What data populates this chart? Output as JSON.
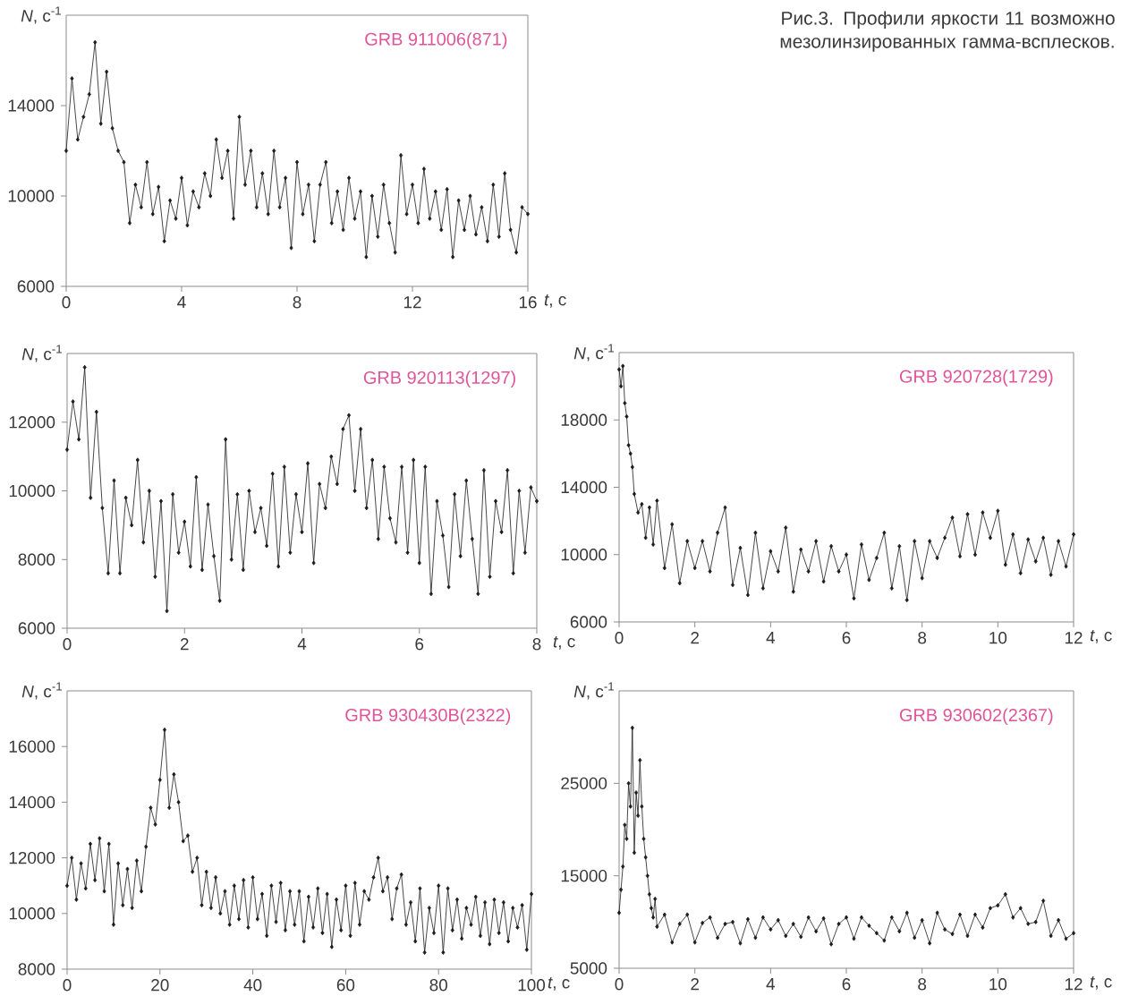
{
  "chart_data": [
    {
      "type": "other",
      "title": "Рис.3. Профили яркости 11 возможно мезолинзированных гамма-всплесков."
    },
    {
      "type": "line",
      "annotations": [
        "GRB 911006(871)"
      ],
      "xlabel": "*t*, с",
      "ylabel": "*N*, с$^{-1}$",
      "color": "#1a1a1a",
      "marker": "diamond",
      "line_style": "solid",
      "xlim": [
        0,
        16
      ],
      "ylim": [
        6000,
        18000
      ],
      "xticks": [
        0,
        4,
        8,
        12,
        16
      ],
      "yticks": [
        6000,
        10000,
        14000
      ],
      "x": [
        0,
        0.2,
        0.4,
        0.6,
        0.8,
        1,
        1.2,
        1.4,
        1.6,
        1.8,
        2,
        2.2,
        2.4,
        2.6,
        2.8,
        3,
        3.2,
        3.4,
        3.6,
        3.8,
        4,
        4.2,
        4.4,
        4.6,
        4.8,
        5,
        5.2,
        5.4,
        5.6,
        5.8,
        6,
        6.2,
        6.4,
        6.6,
        6.8,
        7,
        7.2,
        7.4,
        7.6,
        7.8,
        8,
        8.2,
        8.4,
        8.6,
        8.8,
        9,
        9.2,
        9.4,
        9.6,
        9.8,
        10,
        10.2,
        10.4,
        10.6,
        10.8,
        11,
        11.2,
        11.4,
        11.6,
        11.8,
        12,
        12.2,
        12.4,
        12.6,
        12.8,
        13,
        13.2,
        13.4,
        13.6,
        13.8,
        14,
        14.2,
        14.4,
        14.6,
        14.8,
        15,
        15.2,
        15.4,
        15.6,
        15.8,
        16
      ],
      "values": [
        12000,
        15200,
        12500,
        13500,
        14500,
        16800,
        13200,
        15500,
        13000,
        12000,
        11500,
        8800,
        10500,
        9500,
        11500,
        9200,
        10400,
        8000,
        9800,
        9000,
        10800,
        8700,
        10200,
        9500,
        11000,
        10000,
        12500,
        10800,
        12000,
        9000,
        13500,
        10500,
        12000,
        9500,
        11000,
        9200,
        12000,
        9500,
        10800,
        7700,
        11500,
        9200,
        10500,
        8000,
        10500,
        11500,
        8800,
        10200,
        8500,
        10800,
        9000,
        10200,
        7300,
        10000,
        8200,
        10500,
        8800,
        7500,
        11800,
        9200,
        10500,
        8800,
        11200,
        9000,
        10200,
        8500,
        10300,
        7300,
        9800,
        8500,
        10000,
        8300,
        9500,
        8000,
        10500,
        8200,
        11000,
        8500,
        7500,
        9500,
        9200
      ]
    },
    {
      "type": "line",
      "annotations": [
        "GRB 920113(1297)"
      ],
      "xlabel": "*t*, с",
      "ylabel": "*N*, с$^{-1}$",
      "color": "#1a1a1a",
      "marker": "diamond",
      "line_style": "solid",
      "xlim": [
        0,
        8
      ],
      "ylim": [
        6000,
        14000
      ],
      "xticks": [
        0,
        2,
        4,
        6,
        8
      ],
      "yticks": [
        6000,
        8000,
        10000,
        12000
      ],
      "x": [
        0,
        0.1,
        0.2,
        0.3,
        0.4,
        0.5,
        0.6,
        0.7,
        0.8,
        0.9,
        1,
        1.1,
        1.2,
        1.3,
        1.4,
        1.5,
        1.6,
        1.7,
        1.8,
        1.9,
        2,
        2.1,
        2.2,
        2.3,
        2.4,
        2.5,
        2.6,
        2.7,
        2.8,
        2.9,
        3,
        3.1,
        3.2,
        3.3,
        3.4,
        3.5,
        3.6,
        3.7,
        3.8,
        3.9,
        4,
        4.1,
        4.2,
        4.3,
        4.4,
        4.5,
        4.6,
        4.7,
        4.8,
        4.9,
        5,
        5.1,
        5.2,
        5.3,
        5.4,
        5.5,
        5.6,
        5.7,
        5.8,
        5.9,
        6,
        6.1,
        6.2,
        6.3,
        6.4,
        6.5,
        6.6,
        6.7,
        6.8,
        6.9,
        7,
        7.1,
        7.2,
        7.3,
        7.4,
        7.5,
        7.6,
        7.7,
        7.8,
        7.9,
        8
      ],
      "values": [
        11200,
        12600,
        11500,
        13600,
        9800,
        12300,
        9500,
        7600,
        10300,
        7600,
        9800,
        9000,
        10900,
        8500,
        10000,
        7500,
        9700,
        6500,
        9900,
        8200,
        9100,
        7800,
        10400,
        7700,
        9600,
        8100,
        6800,
        11500,
        8000,
        9900,
        7700,
        10000,
        8800,
        9500,
        8400,
        10500,
        7800,
        10700,
        8200,
        9900,
        8800,
        10800,
        7900,
        10200,
        9500,
        11000,
        10200,
        11800,
        12200,
        10000,
        11800,
        9500,
        10900,
        8600,
        10700,
        9200,
        8500,
        10700,
        8200,
        10900,
        7900,
        10700,
        7000,
        9700,
        8700,
        7200,
        9900,
        8100,
        10300,
        8600,
        7000,
        10600,
        7500,
        9700,
        8800,
        10600,
        7600,
        10000,
        8200,
        10100,
        9700
      ]
    },
    {
      "type": "line",
      "annotations": [
        "GRB 920728(1729)"
      ],
      "xlabel": "*t*, с",
      "ylabel": "*N*, с$^{-1}$",
      "color": "#1a1a1a",
      "marker": "diamond",
      "line_style": "solid",
      "xlim": [
        0,
        12
      ],
      "ylim": [
        6000,
        22000
      ],
      "xticks": [
        0,
        2,
        4,
        6,
        8,
        10,
        12
      ],
      "yticks": [
        6000,
        10000,
        14000,
        18000
      ],
      "x": [
        0,
        0.05,
        0.1,
        0.15,
        0.2,
        0.25,
        0.3,
        0.35,
        0.4,
        0.5,
        0.6,
        0.7,
        0.8,
        0.9,
        1,
        1.2,
        1.4,
        1.6,
        1.8,
        2,
        2.2,
        2.4,
        2.6,
        2.8,
        3,
        3.2,
        3.4,
        3.6,
        3.8,
        4,
        4.2,
        4.4,
        4.6,
        4.8,
        5,
        5.2,
        5.4,
        5.6,
        5.8,
        6,
        6.2,
        6.4,
        6.6,
        6.8,
        7,
        7.2,
        7.4,
        7.6,
        7.8,
        8,
        8.2,
        8.4,
        8.6,
        8.8,
        9,
        9.2,
        9.4,
        9.6,
        9.8,
        10,
        10.2,
        10.4,
        10.6,
        10.8,
        11,
        11.2,
        11.4,
        11.6,
        11.8,
        12
      ],
      "values": [
        21000,
        20000,
        21200,
        19000,
        18200,
        16500,
        16000,
        15200,
        13600,
        12500,
        13000,
        11000,
        12800,
        10600,
        13200,
        9200,
        11800,
        8300,
        10800,
        9200,
        10800,
        9000,
        11300,
        12800,
        8200,
        10400,
        7600,
        11300,
        8000,
        10200,
        9000,
        11600,
        7800,
        10300,
        9000,
        10800,
        8400,
        10500,
        9000,
        10000,
        7400,
        10600,
        8500,
        9800,
        11300,
        8000,
        10500,
        7300,
        10800,
        8600,
        10800,
        9800,
        11000,
        12200,
        9900,
        12400,
        10000,
        12500,
        11000,
        12600,
        9400,
        11200,
        8900,
        10900,
        9600,
        11000,
        8800,
        10800,
        9300,
        11200
      ]
    },
    {
      "type": "line",
      "annotations": [
        "GRB 930430B(2322)"
      ],
      "xlabel": "*t*, с",
      "ylabel": "*N*, с$^{-1}$",
      "color": "#1a1a1a",
      "marker": "diamond",
      "line_style": "solid",
      "xlim": [
        0,
        100
      ],
      "ylim": [
        8000,
        18000
      ],
      "xticks": [
        0,
        20,
        40,
        60,
        80,
        100
      ],
      "yticks": [
        8000,
        10000,
        12000,
        14000,
        16000
      ],
      "x": [
        0,
        1,
        2,
        3,
        4,
        5,
        6,
        7,
        8,
        9,
        10,
        11,
        12,
        13,
        14,
        15,
        16,
        17,
        18,
        19,
        20,
        21,
        22,
        23,
        24,
        25,
        26,
        27,
        28,
        29,
        30,
        31,
        32,
        33,
        34,
        35,
        36,
        37,
        38,
        39,
        40,
        41,
        42,
        43,
        44,
        45,
        46,
        47,
        48,
        49,
        50,
        51,
        52,
        53,
        54,
        55,
        56,
        57,
        58,
        59,
        60,
        61,
        62,
        63,
        64,
        65,
        66,
        67,
        68,
        69,
        70,
        71,
        72,
        73,
        74,
        75,
        76,
        77,
        78,
        79,
        80,
        81,
        82,
        83,
        84,
        85,
        86,
        87,
        88,
        89,
        90,
        91,
        92,
        93,
        94,
        95,
        96,
        97,
        98,
        99,
        100
      ],
      "values": [
        11000,
        12000,
        10500,
        11800,
        10900,
        12500,
        11200,
        12700,
        10800,
        12500,
        9600,
        11800,
        10300,
        11600,
        10200,
        11900,
        10800,
        12400,
        13800,
        13200,
        14800,
        16600,
        13800,
        15000,
        14000,
        12600,
        12800,
        11500,
        12000,
        10300,
        11500,
        10200,
        11300,
        10000,
        10800,
        9600,
        11000,
        9800,
        11200,
        9500,
        11300,
        9800,
        10700,
        9200,
        11000,
        9700,
        11100,
        9400,
        10800,
        9600,
        10800,
        9000,
        10600,
        9500,
        10900,
        9300,
        10700,
        8800,
        10500,
        9400,
        11000,
        9200,
        11100,
        9600,
        10800,
        10500,
        11300,
        12000,
        10800,
        11300,
        9800,
        10900,
        11400,
        9600,
        10400,
        9000,
        10900,
        8600,
        10200,
        9300,
        11000,
        8600,
        10900,
        9400,
        10500,
        9100,
        10200,
        9600,
        10600,
        9200,
        10400,
        8900,
        10500,
        9300,
        10400,
        9000,
        10200,
        9500,
        10300,
        8700,
        10700
      ]
    },
    {
      "type": "line",
      "annotations": [
        "GRB 930602(2367)"
      ],
      "xlabel": "*t*, с",
      "ylabel": "*N*, с$^{-1}$",
      "color": "#1a1a1a",
      "marker": "diamond",
      "line_style": "solid",
      "xlim": [
        0,
        12
      ],
      "ylim": [
        5000,
        35000
      ],
      "xticks": [
        0,
        2,
        4,
        6,
        8,
        10,
        12
      ],
      "yticks": [
        5000,
        15000,
        25000
      ],
      "x": [
        0,
        0.05,
        0.1,
        0.15,
        0.2,
        0.25,
        0.3,
        0.35,
        0.4,
        0.45,
        0.5,
        0.55,
        0.6,
        0.65,
        0.7,
        0.75,
        0.8,
        0.85,
        0.9,
        0.95,
        1,
        1.2,
        1.4,
        1.6,
        1.8,
        2,
        2.2,
        2.4,
        2.6,
        2.8,
        3,
        3.2,
        3.4,
        3.6,
        3.8,
        4,
        4.2,
        4.4,
        4.6,
        4.8,
        5,
        5.2,
        5.4,
        5.6,
        5.8,
        6,
        6.2,
        6.4,
        6.6,
        6.8,
        7,
        7.2,
        7.4,
        7.6,
        7.8,
        8,
        8.2,
        8.4,
        8.6,
        8.8,
        9,
        9.2,
        9.4,
        9.6,
        9.8,
        10,
        10.2,
        10.4,
        10.6,
        10.8,
        11,
        11.2,
        11.4,
        11.6,
        11.8,
        12
      ],
      "values": [
        11000,
        13500,
        16000,
        20500,
        19000,
        25000,
        22500,
        31000,
        17500,
        24000,
        21500,
        27500,
        22500,
        19000,
        17000,
        15000,
        13000,
        11500,
        10500,
        12500,
        9500,
        10800,
        7800,
        9800,
        10800,
        7800,
        9900,
        10500,
        8300,
        9800,
        10000,
        7700,
        10300,
        8300,
        10500,
        9200,
        10200,
        8500,
        9800,
        8400,
        10500,
        9000,
        10400,
        7600,
        9800,
        10500,
        8200,
        10500,
        9600,
        8800,
        8000,
        10500,
        9000,
        11000,
        8300,
        10200,
        7700,
        11000,
        9200,
        8700,
        10800,
        8500,
        10800,
        9400,
        11500,
        11800,
        13000,
        10500,
        11500,
        9800,
        10000,
        12300,
        8500,
        10200,
        8200,
        8800
      ]
    }
  ]
}
